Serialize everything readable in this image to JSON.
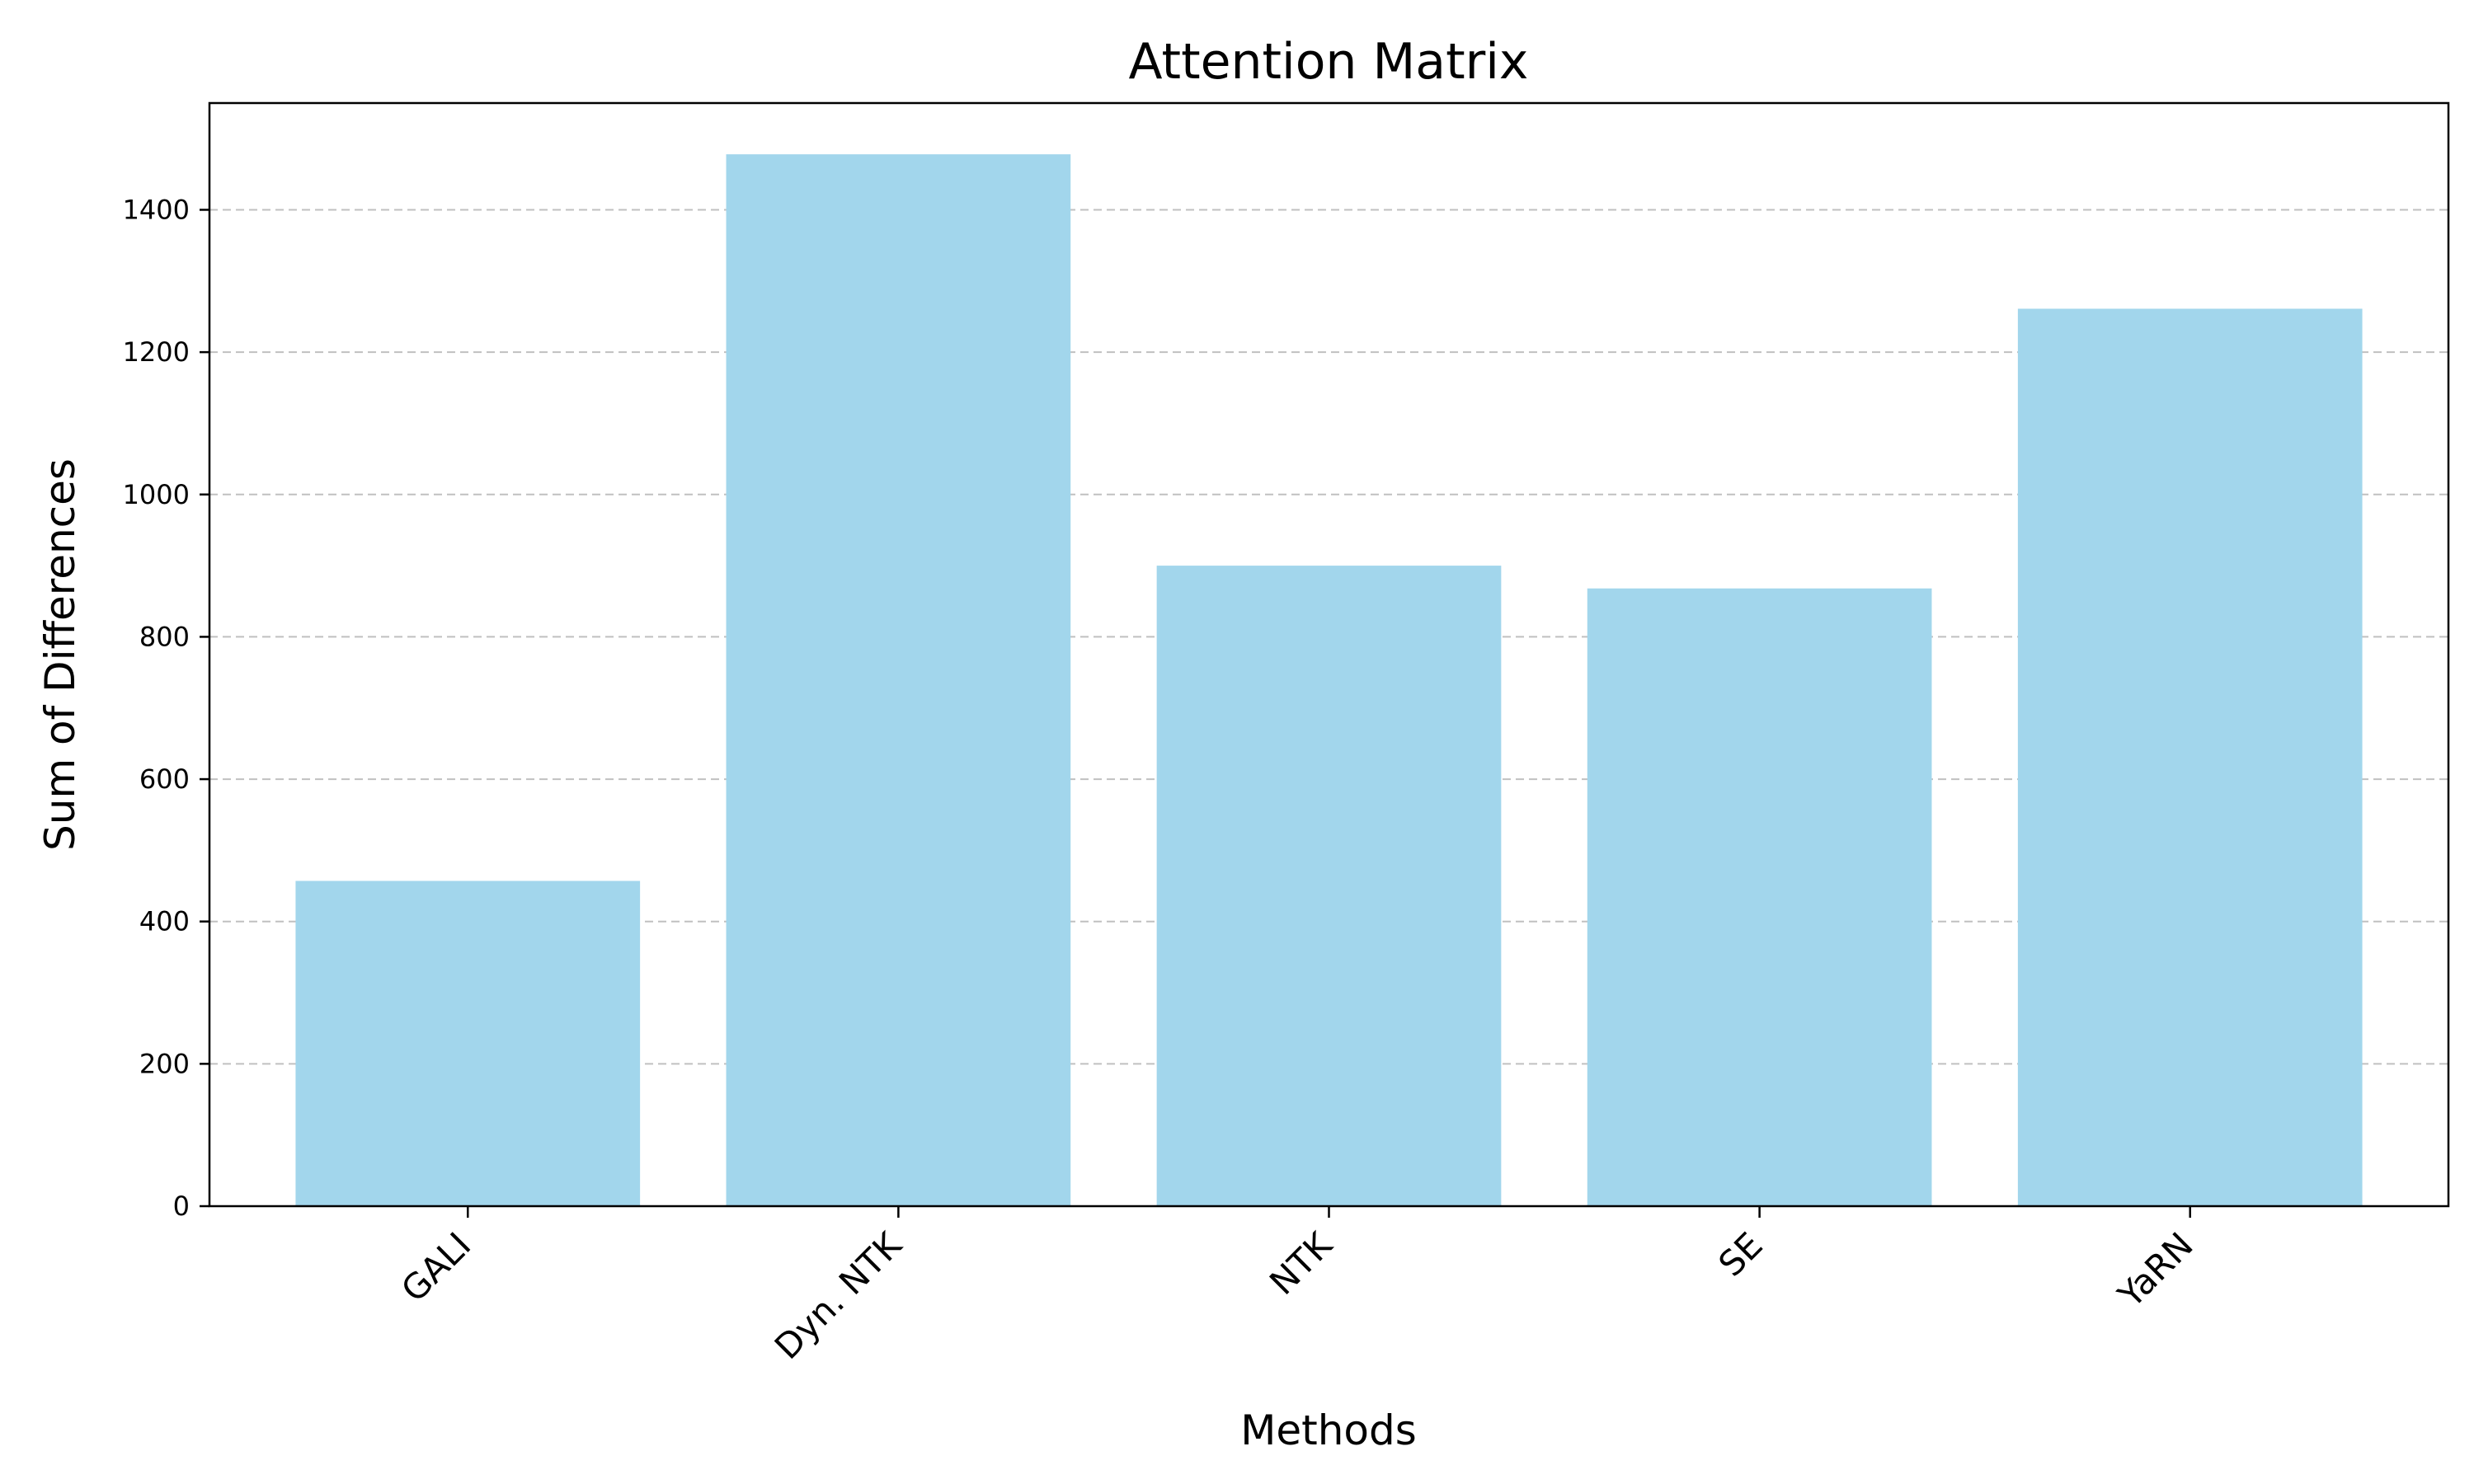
{
  "chart_data": {
    "type": "bar",
    "title": "Attention Matrix",
    "xlabel": "Methods",
    "ylabel": "Sum of Differences",
    "categories": [
      "GALI",
      "Dyn. NTK",
      "NTK",
      "SE",
      "YaRN"
    ],
    "values": [
      457,
      1478,
      900,
      868,
      1261
    ],
    "ylim": [
      0,
      1550
    ],
    "yticks": [
      0,
      200,
      400,
      600,
      800,
      1000,
      1200,
      1400
    ],
    "ytick_labels": [
      "0",
      "200",
      "400",
      "600",
      "800",
      "1000",
      "1200",
      "1400"
    ],
    "bar_color": "#a2d6ec",
    "grid": "y-dashed",
    "grid_color": "#c0c0c0",
    "legend": "none"
  }
}
